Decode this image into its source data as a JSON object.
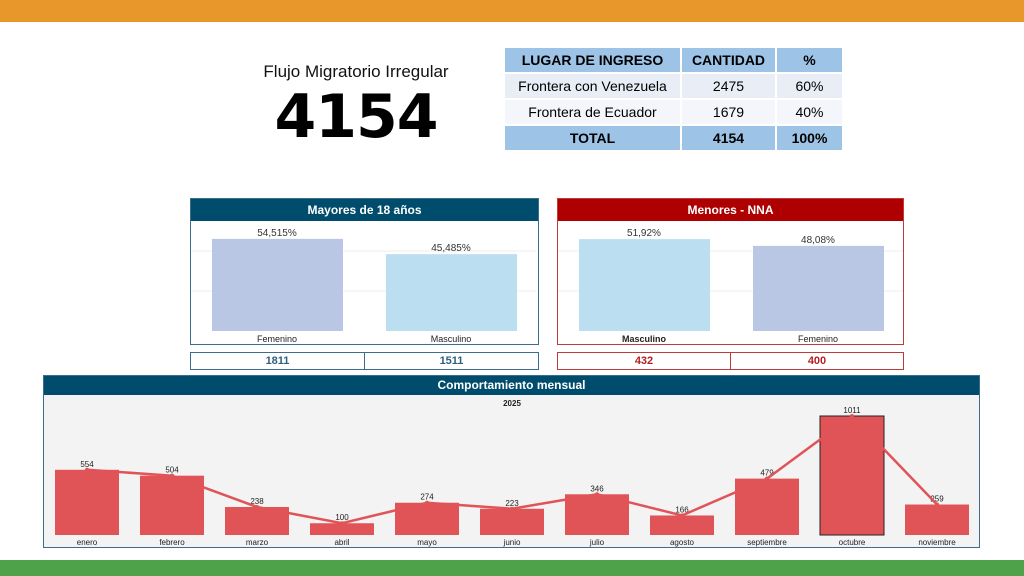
{
  "header": {
    "title": "Flujo Migratorio Irregular",
    "total": "4154"
  },
  "table": {
    "headers": [
      "LUGAR DE INGRESO",
      "CANTIDAD",
      "%"
    ],
    "rows": [
      [
        "Frontera con Venezuela",
        "2475",
        "60%"
      ],
      [
        "Frontera de Ecuador",
        "1679",
        "40%"
      ]
    ],
    "total": [
      "TOTAL",
      "4154",
      "100%"
    ]
  },
  "colors": {
    "top_bar": "#E8982A",
    "bottom_bar": "#4EA24A",
    "adult_header": "#004C6D",
    "minor_header": "#AE0000",
    "bar_purple": "#B9C6E4",
    "bar_blue": "#BBDEF0",
    "monthly_bar": "#E05458"
  },
  "chart_data": [
    {
      "type": "bar",
      "title": "Mayores de 18 años",
      "categories": [
        "Femenino",
        "Masculino"
      ],
      "values": [
        54.515,
        45.485
      ],
      "labels": [
        "54,515%",
        "45,485%"
      ],
      "counts": [
        "1811",
        "1511"
      ]
    },
    {
      "type": "bar",
      "title": "Menores - NNA",
      "categories": [
        "Masculino",
        "Femenino"
      ],
      "values": [
        51.92,
        48.08
      ],
      "labels": [
        "51,92%",
        "48,08%"
      ],
      "counts": [
        "432",
        "400"
      ]
    },
    {
      "type": "bar",
      "title": "Comportamiento mensual",
      "subtitle": "2025",
      "categories": [
        "enero",
        "febrero",
        "marzo",
        "abril",
        "mayo",
        "junio",
        "julio",
        "agosto",
        "septiembre",
        "octubre",
        "noviembre"
      ],
      "values": [
        554,
        504,
        238,
        100,
        274,
        223,
        346,
        166,
        479,
        1011,
        259
      ],
      "overlay_line": true,
      "highlighted": "octubre"
    }
  ]
}
